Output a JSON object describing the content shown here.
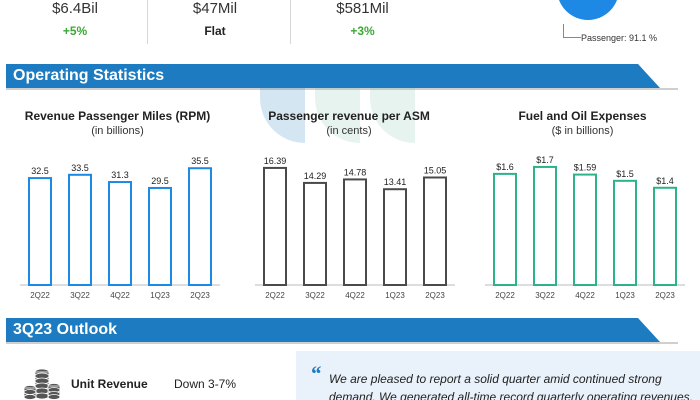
{
  "top_metrics": [
    {
      "value": "$6.4Bil",
      "change": "+5%",
      "tone": "positive"
    },
    {
      "value": "$47Mil",
      "change": "Flat",
      "tone": "flat"
    },
    {
      "value": "$581Mil",
      "change": "+3%",
      "tone": "positive"
    }
  ],
  "revenue_mix": {
    "passenger_label": "Passenger: 91.1 %",
    "passenger_share": 91.1
  },
  "sections": {
    "operating": "Operating Statistics",
    "outlook": "3Q23 Outlook"
  },
  "chart_data": [
    {
      "type": "bar",
      "title": "Revenue Passenger Miles (RPM)",
      "subtitle": "(in billions)",
      "categories": [
        "2Q22",
        "3Q22",
        "4Q22",
        "1Q23",
        "2Q23"
      ],
      "values": [
        32.5,
        33.5,
        31.3,
        29.5,
        35.5
      ],
      "labels": [
        "32.5",
        "33.5",
        "31.3",
        "29.5",
        "35.5"
      ],
      "ylim": [
        0,
        38
      ],
      "color": "#1e88e5"
    },
    {
      "type": "bar",
      "title": "Passenger revenue per ASM",
      "subtitle": "(in cents)",
      "categories": [
        "2Q22",
        "3Q22",
        "4Q22",
        "1Q23",
        "2Q23"
      ],
      "values": [
        16.39,
        14.29,
        14.78,
        13.41,
        15.05
      ],
      "labels": [
        "16.39",
        "14.29",
        "14.78",
        "13.41",
        "15.05"
      ],
      "ylim": [
        0,
        17.5
      ],
      "color": "#4a4a4a"
    },
    {
      "type": "bar",
      "title": "Fuel and Oil Expenses",
      "subtitle": "($ in billions)",
      "categories": [
        "2Q22",
        "3Q22",
        "4Q22",
        "1Q23",
        "2Q23"
      ],
      "values": [
        1.6,
        1.7,
        1.59,
        1.5,
        1.4
      ],
      "labels": [
        "$1.6",
        "$1.7",
        "$1.59",
        "$1.5",
        "$1.4"
      ],
      "ylim": [
        0,
        1.8
      ],
      "color": "#2bb389"
    }
  ],
  "outlook": {
    "items": [
      {
        "label": "Unit Revenue",
        "value": "Down 3-7%"
      }
    ],
    "quote_lines": [
      "We are pleased to report a solid quarter amid continued strong",
      "demand. We generated all-time record quarterly operating revenues,"
    ]
  },
  "icons": {
    "coins": "coins-icon",
    "quote": "quote-mark-icon",
    "pie": "pie-chart-icon"
  },
  "colors": {
    "section_blue": "#1d7bc1",
    "positive_green": "#3aa935",
    "quote_bg": "#e9f1fa"
  }
}
